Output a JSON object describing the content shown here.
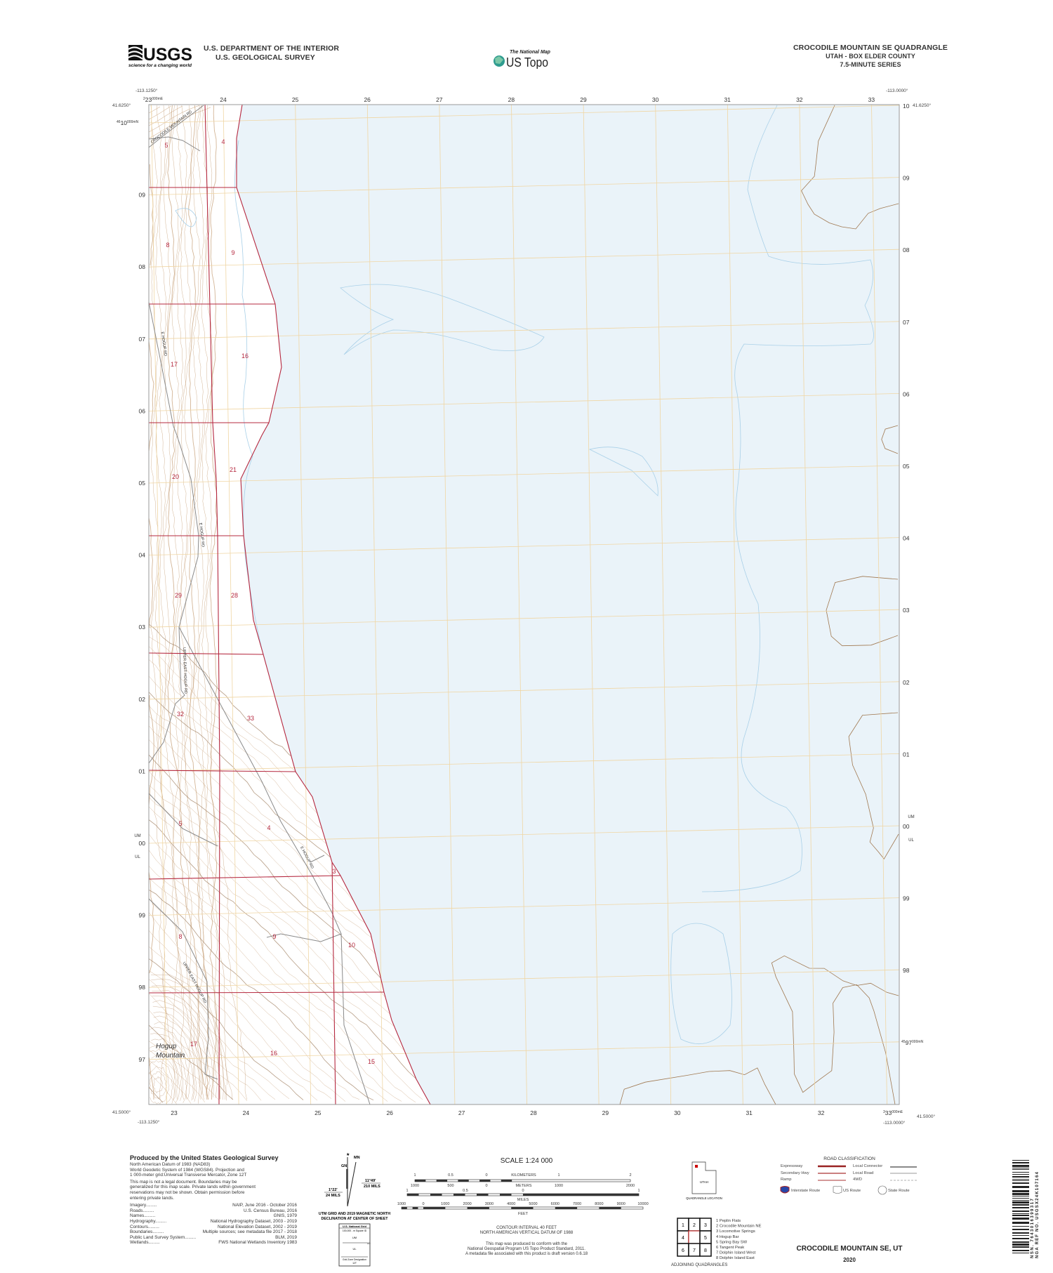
{
  "header": {
    "agency_logo_text": "USGS",
    "agency_tagline": "science for a changing world",
    "department": "U.S. DEPARTMENT OF THE INTERIOR",
    "survey": "U.S. GEOLOGICAL SURVEY",
    "national_map_label": "The National Map",
    "us_topo_label": "US Topo",
    "quad_title": "CROCODILE MOUNTAIN SE QUADRANGLE",
    "state_county": "UTAH - BOX ELDER COUNTY",
    "series": "7.5-MINUTE SERIES"
  },
  "map": {
    "colors": {
      "water": "#eaf3f9",
      "land": "#ffffff",
      "grid": "#f0d6a4",
      "section_lines": "#b5283f",
      "roads": "#8a8a8a",
      "contours": "#c8a27c",
      "water_lines": "#a9d0e8"
    },
    "corners": {
      "top_left_lon": "-113.1250°",
      "top_left_lat": "41.6250°",
      "top_right_lon": "-113.0000°",
      "top_right_lat": "41.6250°",
      "bottom_left_lat": "41.5000°",
      "bottom_left_lon": "-113.1250°",
      "bottom_right_lat": "41.5000°",
      "bottom_right_lon": "-113.0000°"
    },
    "easting_first": {
      "zone": "2",
      "value": "23",
      "suffix": "000mE"
    },
    "easting_last": {
      "zone": "3",
      "value": "33",
      "suffix": "000mE"
    },
    "eastings_top": [
      "24",
      "25",
      "26",
      "27",
      "28",
      "29",
      "30",
      "31",
      "32",
      "33"
    ],
    "eastings_bottom": [
      "23",
      "24",
      "25",
      "26",
      "27",
      "28",
      "29",
      "30",
      "31",
      "32"
    ],
    "northing_first": {
      "zone": "46",
      "value": "10",
      "suffix": "000mN"
    },
    "northing_last": {
      "zone": "45",
      "value": "97",
      "suffix": "000mN"
    },
    "northings_left": [
      "09",
      "08",
      "07",
      "06",
      "05",
      "04",
      "03",
      "02",
      "01",
      "00",
      "99",
      "98",
      "97"
    ],
    "northings_right": [
      "10",
      "09",
      "08",
      "07",
      "06",
      "05",
      "04",
      "03",
      "02",
      "01",
      "00",
      "99",
      "98"
    ],
    "grid_zone_upper": "UM",
    "grid_zone_lower": "UL",
    "section_numbers": [
      "5",
      "4",
      "8",
      "9",
      "17",
      "16",
      "20",
      "21",
      "29",
      "28",
      "32",
      "33",
      "5",
      "4",
      "3",
      "8",
      "9",
      "10",
      "17",
      "16",
      "15"
    ],
    "road_names": [
      "CROCODILE MOUNTAIN RD",
      "E HOGUP RD",
      "E HOGUP RD",
      "UPPER EAST HOGUP RD",
      "E HOGUP RD",
      "UPPER EAST HOGUP RD"
    ],
    "place_name_line1": "Hogup",
    "place_name_line2": "Mountain"
  },
  "footer": {
    "producer": "Produced by the United States Geological Survey",
    "datum_lines": [
      "North American Datum of 1983 (NAD83)",
      "World Geodetic System of 1984 (WGS84).  Projection and",
      "1 000-meter grid:Universal Transverse Mercator, Zone 12T"
    ],
    "disclaimer_lines": [
      "This map is not a legal document. Boundaries may be",
      "generalized for this map scale. Private lands within government",
      "reservations may not be shown. Obtain permission before",
      "entering private lands."
    ],
    "sources": [
      {
        "name": "Imagery",
        "source": "NAIP, June 2016 - October 2016"
      },
      {
        "name": "Roads",
        "source": "U.S. Census Bureau, 2016"
      },
      {
        "name": "Names",
        "source": "GNIS, 1979"
      },
      {
        "name": "Hydrography",
        "source": "National Hydrography Dataset, 2003 - 2019"
      },
      {
        "name": "Contours",
        "source": "National Elevation Dataset, 2002 - 2019"
      },
      {
        "name": "Boundaries",
        "source": "Multiple sources; see metadata file 2017 - 2018"
      },
      {
        "name": "Public Land Survey System",
        "source": "BLM, 2019"
      },
      {
        "name": "Wetlands",
        "source": "FWS National Wetlands Inventory 1983"
      }
    ],
    "declination": {
      "mn": "MN",
      "gn": "GN",
      "grid_angle": "1°22'",
      "grid_mils": "24 MILS",
      "mag_angle": "11°49'",
      "mag_mils": "210 MILS",
      "caption_1": "UTM GRID AND 2019 MAGNETIC NORTH",
      "caption_2": "DECLINATION AT CENTER OF SHEET"
    },
    "usng": {
      "title": "U.S. National Grid",
      "subtitle": "100,000 - m Square ID",
      "upper": "UM",
      "lower": "UL",
      "value": "00",
      "gzd_label": "Grid Zone Designation",
      "gzd": "12T"
    },
    "scale": {
      "title": "SCALE 1:24 000",
      "km_label": "KILOMETERS",
      "km_ticks": [
        "1",
        "0.5",
        "0",
        "1",
        "2"
      ],
      "m_label": "METERS",
      "m_ticks": [
        "1000",
        "500",
        "0",
        "1000",
        "2000"
      ],
      "mi_label": "MILES",
      "mi_ticks": [
        "1",
        "0.5",
        "0",
        "1"
      ],
      "ft_label": "FEET",
      "ft_ticks": [
        "1000",
        "0",
        "1000",
        "2000",
        "3000",
        "4000",
        "5000",
        "6000",
        "7000",
        "8000",
        "9000",
        "10000"
      ]
    },
    "contour_interval": "CONTOUR INTERVAL 40 FEET",
    "vertical_datum": "NORTH AMERICAN VERTICAL DATUM OF 1988",
    "conform_lines": [
      "This map was produced to conform with the",
      "National Geospatial Program US Topo Product Standard, 2011.",
      "A metadata file associated with this product is draft version 0.6.18"
    ],
    "location": {
      "state": "UTAH",
      "caption": "QUADRANGLE LOCATION"
    },
    "adjoining": {
      "grid": [
        "1",
        "2",
        "3",
        "4",
        "",
        "5",
        "6",
        "7",
        "8"
      ],
      "names": [
        "1 Peplin Flats",
        "2 Crocodile Mountain NE",
        "3 Locomotive Springs",
        "4 Hogup Bar",
        "5 Spring Bay SW",
        "6 Tangent Peak",
        "7 Dolphin Island West",
        "8 Dolphin Island East"
      ],
      "caption": "ADJOINING QUADRANGLES"
    },
    "road_classification": {
      "title": "ROAD CLASSIFICATION",
      "left": [
        "Expressway",
        "Secondary Hwy",
        "Ramp"
      ],
      "right": [
        "Local Connector",
        "Local Road",
        "4WD"
      ],
      "routes": [
        "Interstate Route",
        "US Route",
        "State Route"
      ]
    },
    "sheet_title": "CROCODILE MOUNTAIN SE,  UT",
    "year": "2020",
    "barcode_line1": "NSN. 7643016399317",
    "barcode_line2": "NGA REF NO. USGSX24K107164"
  }
}
